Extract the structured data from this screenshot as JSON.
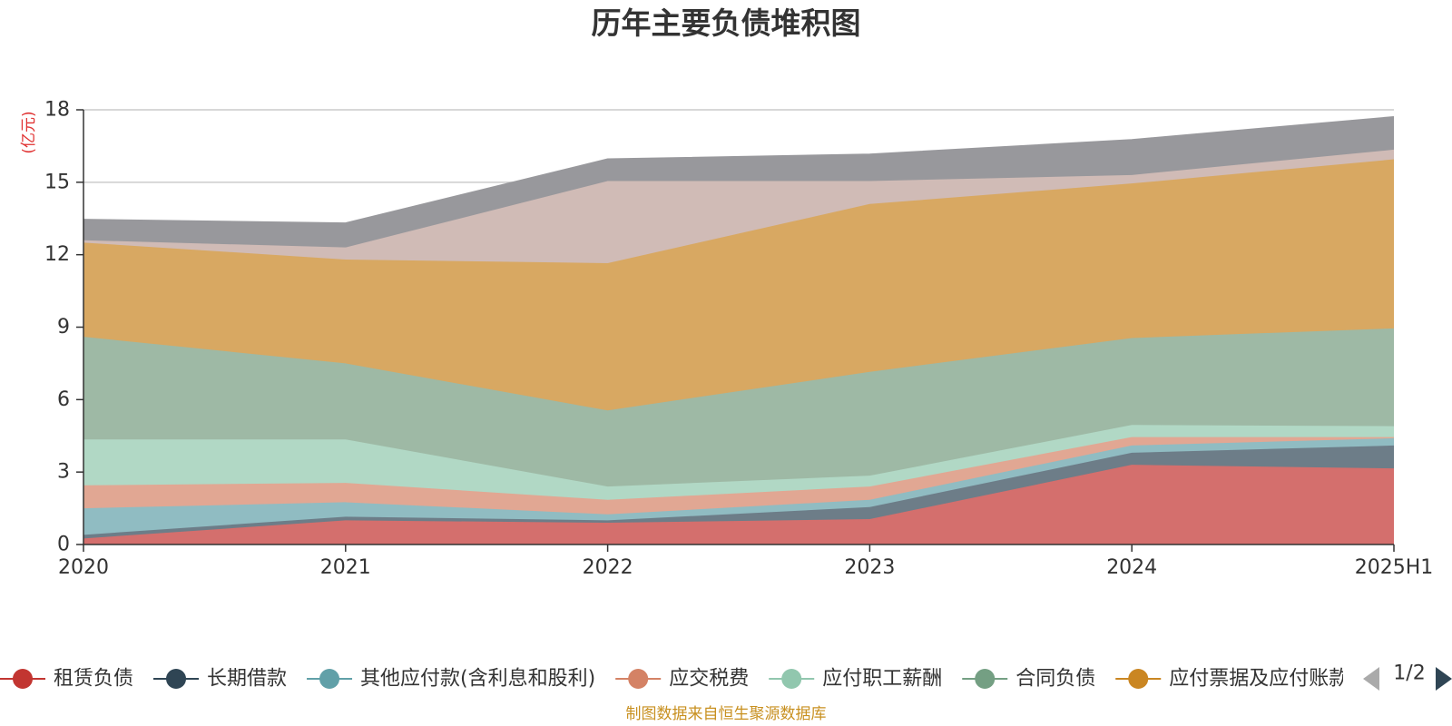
{
  "chart_data": {
    "type": "area",
    "stacked": true,
    "title": "历年主要负债堆积图",
    "ylabel": "(亿元)",
    "xlabel": "",
    "categories": [
      "2020",
      "2021",
      "2022",
      "2023",
      "2024",
      "2025H1"
    ],
    "ylim": [
      0,
      18
    ],
    "yticks": [
      0,
      3,
      6,
      9,
      12,
      15,
      18
    ],
    "grid": true,
    "series": [
      {
        "name": "租赁负债",
        "color": "#c23531",
        "area_color": "#d46f6d",
        "values": [
          0.25,
          1.0,
          0.9,
          1.05,
          3.3,
          3.15
        ]
      },
      {
        "name": "长期借款",
        "color": "#2f4554",
        "area_color": "#6d7d88",
        "values": [
          0.15,
          0.15,
          0.1,
          0.5,
          0.5,
          0.95
        ]
      },
      {
        "name": "其他应付款(含利息和股利)",
        "color": "#61a0a8",
        "area_color": "#90bcc2",
        "values": [
          1.1,
          0.6,
          0.25,
          0.3,
          0.3,
          0.3
        ]
      },
      {
        "name": "应交税费",
        "color": "#d48265",
        "area_color": "#e1a793",
        "values": [
          0.95,
          0.8,
          0.6,
          0.55,
          0.35,
          0.05
        ]
      },
      {
        "name": "应付职工薪酬",
        "color": "#91c7ae",
        "area_color": "#b1d8c5",
        "values": [
          1.9,
          1.8,
          0.55,
          0.45,
          0.5,
          0.45
        ]
      },
      {
        "name": "合同负债",
        "color": "#749f83",
        "area_color": "#9eb9a5",
        "values": [
          4.25,
          3.15,
          3.15,
          4.3,
          3.6,
          4.05
        ]
      },
      {
        "name": "应付票据及应付账款",
        "color": "#ca8622",
        "area_color": "#d8a862",
        "values": [
          3.9,
          4.3,
          6.1,
          6.95,
          6.4,
          7.0
        ]
      },
      {
        "name": "",
        "color": "#bda29a",
        "area_color": "#d0bbb6",
        "values": [
          0.1,
          0.5,
          3.4,
          0.95,
          0.35,
          0.4
        ]
      },
      {
        "name": "",
        "color": "#6e7074",
        "area_color": "#98989c",
        "values": [
          0.85,
          1.0,
          0.9,
          1.1,
          1.45,
          1.35
        ]
      }
    ],
    "legend_placement": "bottom",
    "legend_page": "1/2"
  },
  "source_text": "制图数据来自恒生聚源数据库"
}
